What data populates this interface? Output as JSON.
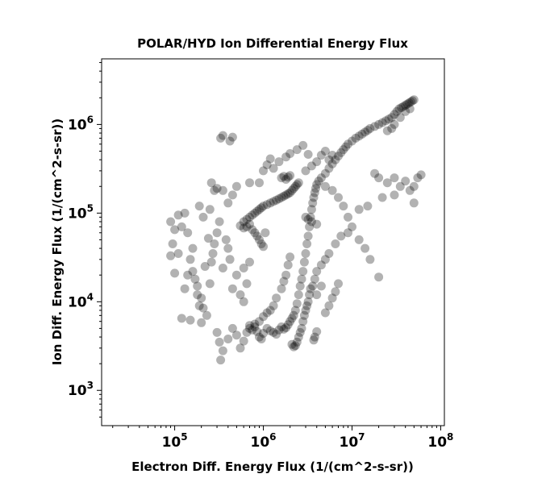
{
  "chart_data": {
    "type": "scatter",
    "title": "POLAR/HYD  Ion Differential Energy Flux",
    "xlabel": "Electron Diff. Energy Flux (1/(cm^2-s-sr))",
    "ylabel": "Ion Diff. Energy Flux (1/(cm^2-s-sr))",
    "xscale": "log",
    "yscale": "log",
    "xlim": [
      15000,
      110000000
    ],
    "ylim": [
      400,
      5500000
    ],
    "xticks": [
      {
        "value": 100000,
        "base": "10",
        "exp": "5"
      },
      {
        "value": 1000000,
        "base": "10",
        "exp": "6"
      },
      {
        "value": 10000000,
        "base": "10",
        "exp": "7"
      },
      {
        "value": 100000000,
        "base": "10",
        "exp": "8"
      }
    ],
    "yticks": [
      {
        "value": 1000,
        "base": "10",
        "exp": "3"
      },
      {
        "value": 10000,
        "base": "10",
        "exp": "4"
      },
      {
        "value": 100000,
        "base": "10",
        "exp": "5"
      },
      {
        "value": 1000000,
        "base": "10",
        "exp": "6"
      }
    ],
    "marker_color": "#000000",
    "marker_opacity": 0.3,
    "grid": false,
    "legend": "none",
    "points": [
      [
        90000,
        80000
      ],
      [
        100000,
        65000
      ],
      [
        110000,
        95000
      ],
      [
        95000,
        45000
      ],
      [
        120000,
        70000
      ],
      [
        130000,
        100000
      ],
      [
        140000,
        60000
      ],
      [
        110000,
        35000
      ],
      [
        150000,
        30000
      ],
      [
        160000,
        22000
      ],
      [
        170000,
        18000
      ],
      [
        180000,
        12000
      ],
      [
        190000,
        9000
      ],
      [
        200000,
        11000
      ],
      [
        210000,
        8500
      ],
      [
        180000,
        15000
      ],
      [
        220000,
        25000
      ],
      [
        160000,
        40000
      ],
      [
        140000,
        20000
      ],
      [
        130000,
        14000
      ],
      [
        120000,
        6500
      ],
      [
        100000,
        21000
      ],
      [
        90000,
        33000
      ],
      [
        150000,
        6200
      ],
      [
        200000,
        5800
      ],
      [
        230000,
        7000
      ],
      [
        250000,
        16000
      ],
      [
        260000,
        28000
      ],
      [
        280000,
        45000
      ],
      [
        300000,
        60000
      ],
      [
        320000,
        80000
      ],
      [
        270000,
        35000
      ],
      [
        240000,
        52000
      ],
      [
        210000,
        90000
      ],
      [
        190000,
        120000
      ],
      [
        250000,
        110000
      ],
      [
        280000,
        180000
      ],
      [
        260000,
        220000
      ],
      [
        300000,
        190000
      ],
      [
        330000,
        700000
      ],
      [
        350000,
        750000
      ],
      [
        420000,
        650000
      ],
      [
        450000,
        720000
      ],
      [
        380000,
        50000
      ],
      [
        400000,
        40000
      ],
      [
        420000,
        30000
      ],
      [
        350000,
        24000
      ],
      [
        300000,
        4500
      ],
      [
        320000,
        3500
      ],
      [
        350000,
        2800
      ],
      [
        330000,
        2200
      ],
      [
        400000,
        3800
      ],
      [
        450000,
        5000
      ],
      [
        500000,
        4200
      ],
      [
        550000,
        3000
      ],
      [
        600000,
        3600
      ],
      [
        650000,
        4500
      ],
      [
        700000,
        5000
      ],
      [
        750000,
        4800
      ],
      [
        800000,
        5200
      ],
      [
        850000,
        4600
      ],
      [
        900000,
        4000
      ],
      [
        950000,
        3800
      ],
      [
        1000000,
        4400
      ],
      [
        1100000,
        5000
      ],
      [
        1200000,
        4700
      ],
      [
        1300000,
        4500
      ],
      [
        1400000,
        4300
      ],
      [
        1500000,
        4800
      ],
      [
        1600000,
        5200
      ],
      [
        1700000,
        4900
      ],
      [
        1800000,
        5100
      ],
      [
        1900000,
        5500
      ],
      [
        2000000,
        6000
      ],
      [
        2100000,
        6500
      ],
      [
        2200000,
        7000
      ],
      [
        2300000,
        8000
      ],
      [
        2400000,
        9500
      ],
      [
        2500000,
        12000
      ],
      [
        2600000,
        15000
      ],
      [
        2700000,
        18000
      ],
      [
        2800000,
        22000
      ],
      [
        2900000,
        28000
      ],
      [
        3000000,
        35000
      ],
      [
        3100000,
        45000
      ],
      [
        3200000,
        55000
      ],
      [
        3300000,
        70000
      ],
      [
        3400000,
        90000
      ],
      [
        3500000,
        110000
      ],
      [
        3600000,
        130000
      ],
      [
        3700000,
        150000
      ],
      [
        3800000,
        170000
      ],
      [
        3900000,
        190000
      ],
      [
        4000000,
        210000
      ],
      [
        4200000,
        230000
      ],
      [
        4500000,
        250000
      ],
      [
        5000000,
        280000
      ],
      [
        5500000,
        320000
      ],
      [
        6000000,
        360000
      ],
      [
        6500000,
        400000
      ],
      [
        7000000,
        440000
      ],
      [
        7500000,
        480000
      ],
      [
        8000000,
        520000
      ],
      [
        8500000,
        560000
      ],
      [
        9000000,
        600000
      ],
      [
        10000000,
        650000
      ],
      [
        11000000,
        700000
      ],
      [
        12000000,
        740000
      ],
      [
        13000000,
        780000
      ],
      [
        14000000,
        820000
      ],
      [
        15000000,
        860000
      ],
      [
        16000000,
        900000
      ],
      [
        18000000,
        950000
      ],
      [
        20000000,
        1000000
      ],
      [
        22000000,
        1050000
      ],
      [
        24000000,
        1100000
      ],
      [
        26000000,
        1150000
      ],
      [
        28000000,
        1200000
      ],
      [
        30000000,
        1300000
      ],
      [
        32000000,
        1400000
      ],
      [
        34000000,
        1500000
      ],
      [
        36000000,
        1550000
      ],
      [
        38000000,
        1600000
      ],
      [
        40000000,
        1650000
      ],
      [
        42000000,
        1700000
      ],
      [
        44000000,
        1750000
      ],
      [
        46000000,
        1800000
      ],
      [
        48000000,
        1850000
      ],
      [
        50000000,
        1900000
      ],
      [
        45000000,
        1500000
      ],
      [
        40000000,
        1400000
      ],
      [
        35000000,
        1200000
      ],
      [
        30000000,
        1000000
      ],
      [
        28000000,
        900000
      ],
      [
        25000000,
        850000
      ],
      [
        600000,
        80000
      ],
      [
        650000,
        85000
      ],
      [
        700000,
        90000
      ],
      [
        750000,
        95000
      ],
      [
        800000,
        100000
      ],
      [
        850000,
        105000
      ],
      [
        900000,
        110000
      ],
      [
        950000,
        115000
      ],
      [
        1000000,
        120000
      ],
      [
        1100000,
        125000
      ],
      [
        1200000,
        130000
      ],
      [
        1300000,
        135000
      ],
      [
        1400000,
        140000
      ],
      [
        1500000,
        145000
      ],
      [
        1600000,
        150000
      ],
      [
        1700000,
        155000
      ],
      [
        1800000,
        160000
      ],
      [
        1900000,
        165000
      ],
      [
        2000000,
        170000
      ],
      [
        2100000,
        180000
      ],
      [
        2200000,
        190000
      ],
      [
        2300000,
        200000
      ],
      [
        2400000,
        210000
      ],
      [
        2500000,
        220000
      ],
      [
        1600000,
        250000
      ],
      [
        1700000,
        260000
      ],
      [
        1800000,
        240000
      ],
      [
        1900000,
        255000
      ],
      [
        2000000,
        265000
      ],
      [
        700000,
        75000
      ],
      [
        750000,
        65000
      ],
      [
        800000,
        60000
      ],
      [
        850000,
        55000
      ],
      [
        900000,
        50000
      ],
      [
        950000,
        45000
      ],
      [
        1000000,
        42000
      ],
      [
        1050000,
        60000
      ],
      [
        650000,
        70000
      ],
      [
        600000,
        68000
      ],
      [
        550000,
        72000
      ],
      [
        3000000,
        90000
      ],
      [
        3200000,
        85000
      ],
      [
        3500000,
        80000
      ],
      [
        4000000,
        75000
      ],
      [
        3000000,
        300000
      ],
      [
        3500000,
        340000
      ],
      [
        4000000,
        380000
      ],
      [
        5000000,
        200000
      ],
      [
        6000000,
        180000
      ],
      [
        7000000,
        150000
      ],
      [
        8000000,
        120000
      ],
      [
        9000000,
        90000
      ],
      [
        10000000,
        70000
      ],
      [
        12000000,
        50000
      ],
      [
        14000000,
        40000
      ],
      [
        16000000,
        30000
      ],
      [
        20000000,
        19000
      ],
      [
        4500000,
        450000
      ],
      [
        5000000,
        500000
      ],
      [
        5500000,
        400000
      ],
      [
        6000000,
        450000
      ],
      [
        18000000,
        280000
      ],
      [
        20000000,
        250000
      ],
      [
        25000000,
        220000
      ],
      [
        30000000,
        250000
      ],
      [
        35000000,
        200000
      ],
      [
        40000000,
        230000
      ],
      [
        45000000,
        180000
      ],
      [
        50000000,
        200000
      ],
      [
        55000000,
        250000
      ],
      [
        60000000,
        270000
      ],
      [
        50000000,
        130000
      ],
      [
        30000000,
        160000
      ],
      [
        22000000,
        150000
      ],
      [
        15000000,
        120000
      ],
      [
        12000000,
        110000
      ],
      [
        9000000,
        60000
      ],
      [
        7500000,
        55000
      ],
      [
        6500000,
        45000
      ],
      [
        5500000,
        35000
      ],
      [
        5000000,
        30000
      ],
      [
        4500000,
        26000
      ],
      [
        4000000,
        22000
      ],
      [
        3800000,
        18000
      ],
      [
        3600000,
        15000
      ],
      [
        3400000,
        14000
      ],
      [
        3300000,
        12000
      ],
      [
        3200000,
        10000
      ],
      [
        3100000,
        9000
      ],
      [
        3000000,
        8000
      ],
      [
        2900000,
        7000
      ],
      [
        2800000,
        6000
      ],
      [
        2700000,
        5000
      ],
      [
        2600000,
        4500
      ],
      [
        2500000,
        4000
      ],
      [
        2400000,
        3500
      ],
      [
        2300000,
        3200
      ],
      [
        2200000,
        3100
      ],
      [
        2100000,
        3300
      ],
      [
        3800000,
        4000
      ],
      [
        4000000,
        4600
      ],
      [
        3700000,
        3700
      ],
      [
        5000000,
        7500
      ],
      [
        5500000,
        9000
      ],
      [
        6000000,
        11000
      ],
      [
        6500000,
        13000
      ],
      [
        7000000,
        16000
      ],
      [
        4500000,
        15000
      ],
      [
        4000000,
        12000
      ],
      [
        1800000,
        20000
      ],
      [
        1900000,
        26000
      ],
      [
        2000000,
        32000
      ],
      [
        1700000,
        17000
      ],
      [
        1600000,
        14000
      ],
      [
        1400000,
        11000
      ],
      [
        1300000,
        9000
      ],
      [
        1200000,
        8000
      ],
      [
        1100000,
        7500
      ],
      [
        1000000,
        6800
      ],
      [
        900000,
        6000
      ],
      [
        800000,
        5600
      ],
      [
        700000,
        5400
      ],
      [
        550000,
        12000
      ],
      [
        600000,
        10000
      ],
      [
        450000,
        14000
      ],
      [
        500000,
        20000
      ],
      [
        650000,
        16000
      ],
      [
        700000,
        28000
      ],
      [
        600000,
        24000
      ],
      [
        400000,
        130000
      ],
      [
        450000,
        160000
      ],
      [
        500000,
        200000
      ],
      [
        350000,
        180000
      ],
      [
        700000,
        220000
      ],
      [
        900000,
        220000
      ],
      [
        1300000,
        320000
      ],
      [
        1500000,
        380000
      ],
      [
        1800000,
        430000
      ],
      [
        2000000,
        470000
      ],
      [
        2400000,
        520000
      ],
      [
        2800000,
        580000
      ],
      [
        3200000,
        460000
      ],
      [
        1000000,
        300000
      ],
      [
        1100000,
        350000
      ],
      [
        1200000,
        410000
      ]
    ]
  }
}
